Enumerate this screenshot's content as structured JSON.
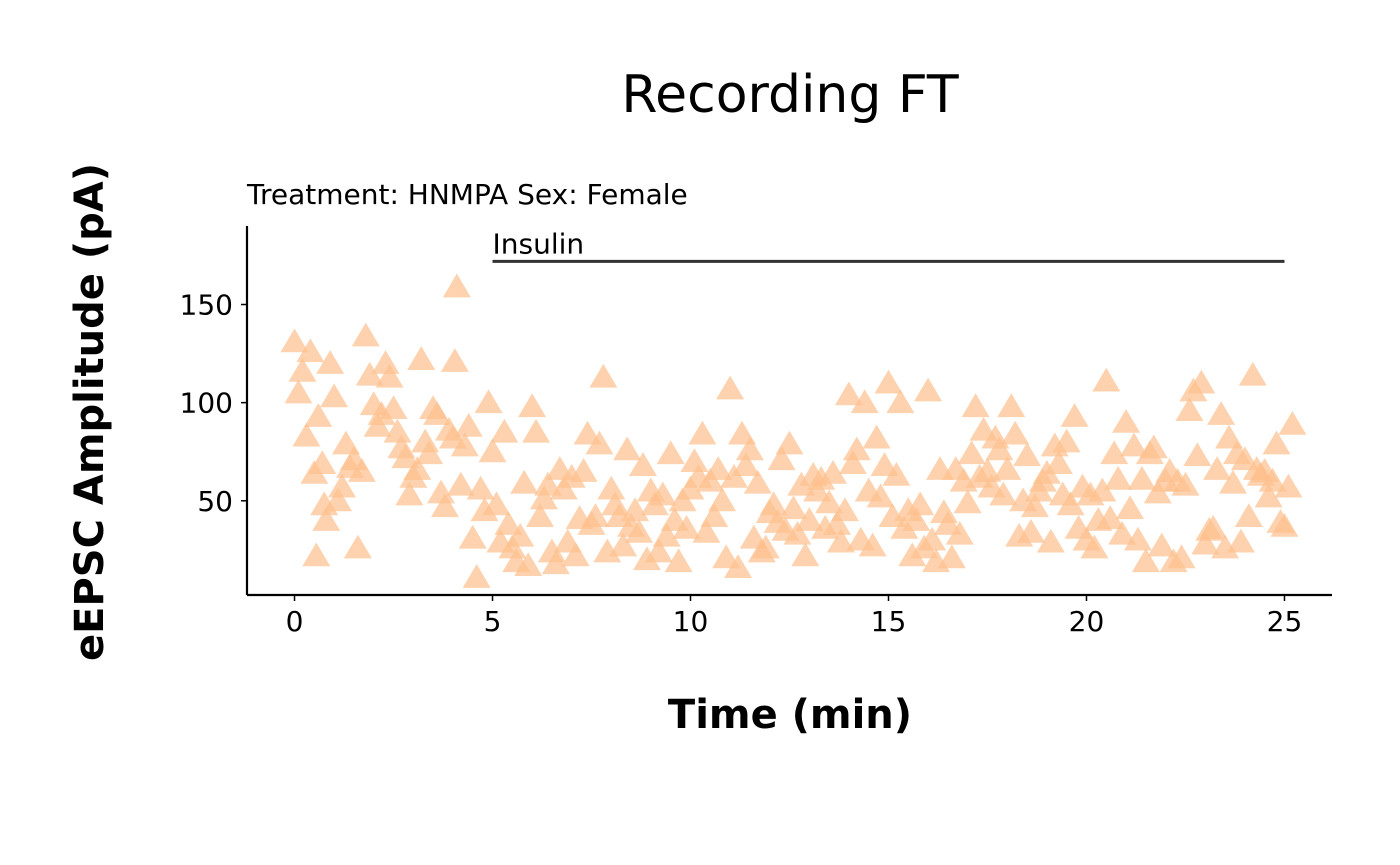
{
  "chart_data": {
    "type": "scatter",
    "title": "Recording FT",
    "subtitle": "Treatment: HNMPA  Sex: Female",
    "xlabel": "Time (min)",
    "ylabel": "eEPSC Amplitude (pA)",
    "xlim": [
      -1.2,
      26.2
    ],
    "ylim": [
      2,
      190
    ],
    "xticks": [
      0,
      5,
      10,
      15,
      20,
      25
    ],
    "yticks": [
      50,
      100,
      150
    ],
    "marker": "triangle",
    "marker_color": "#FDBF8C",
    "grid": false,
    "annotation": {
      "label": "Insulin",
      "x_start": 5,
      "x_end": 25,
      "y": 172
    },
    "points": [
      [
        0,
        131
      ],
      [
        0.1,
        105
      ],
      [
        0.2,
        116
      ],
      [
        0.3,
        83
      ],
      [
        0.4,
        126
      ],
      [
        0.5,
        64
      ],
      [
        0.55,
        22
      ],
      [
        0.6,
        93
      ],
      [
        0.7,
        69
      ],
      [
        0.75,
        48
      ],
      [
        0.8,
        40
      ],
      [
        0.9,
        120
      ],
      [
        1.0,
        103
      ],
      [
        1.1,
        50
      ],
      [
        1.2,
        57
      ],
      [
        1.3,
        79
      ],
      [
        1.4,
        67
      ],
      [
        1.5,
        71
      ],
      [
        1.6,
        26
      ],
      [
        1.7,
        65
      ],
      [
        1.8,
        134
      ],
      [
        1.9,
        114
      ],
      [
        2.0,
        99
      ],
      [
        2.1,
        88
      ],
      [
        2.2,
        94
      ],
      [
        2.3,
        120
      ],
      [
        2.4,
        113
      ],
      [
        2.5,
        97
      ],
      [
        2.6,
        85
      ],
      [
        2.7,
        77
      ],
      [
        2.8,
        72
      ],
      [
        2.9,
        53
      ],
      [
        3.0,
        62
      ],
      [
        3.1,
        66
      ],
      [
        3.2,
        122
      ],
      [
        3.3,
        80
      ],
      [
        3.4,
        74
      ],
      [
        3.5,
        97
      ],
      [
        3.6,
        94
      ],
      [
        3.7,
        54
      ],
      [
        3.8,
        47
      ],
      [
        3.9,
        86
      ],
      [
        4.0,
        82
      ],
      [
        4.05,
        121
      ],
      [
        4.1,
        159
      ],
      [
        4.2,
        58
      ],
      [
        4.3,
        78
      ],
      [
        4.4,
        88
      ],
      [
        4.5,
        31
      ],
      [
        4.6,
        11
      ],
      [
        4.7,
        56
      ],
      [
        4.8,
        45
      ],
      [
        4.9,
        100
      ],
      [
        5.0,
        75
      ],
      [
        5.1,
        48
      ],
      [
        5.2,
        29
      ],
      [
        5.3,
        85
      ],
      [
        5.4,
        38
      ],
      [
        5.5,
        26
      ],
      [
        5.6,
        19
      ],
      [
        5.7,
        32
      ],
      [
        5.8,
        59
      ],
      [
        5.9,
        17
      ],
      [
        6.0,
        98
      ],
      [
        6.1,
        85
      ],
      [
        6.2,
        42
      ],
      [
        6.3,
        51
      ],
      [
        6.4,
        58
      ],
      [
        6.5,
        24
      ],
      [
        6.6,
        18
      ],
      [
        6.7,
        66
      ],
      [
        6.8,
        56
      ],
      [
        6.9,
        29
      ],
      [
        7.0,
        62
      ],
      [
        7.1,
        22
      ],
      [
        7.2,
        41
      ],
      [
        7.3,
        65
      ],
      [
        7.4,
        84
      ],
      [
        7.5,
        38
      ],
      [
        7.6,
        42
      ],
      [
        7.7,
        79
      ],
      [
        7.8,
        113
      ],
      [
        7.9,
        24
      ],
      [
        8.0,
        56
      ],
      [
        8.1,
        48
      ],
      [
        8.2,
        42
      ],
      [
        8.3,
        27
      ],
      [
        8.4,
        76
      ],
      [
        8.5,
        37
      ],
      [
        8.6,
        45
      ],
      [
        8.7,
        34
      ],
      [
        8.8,
        68
      ],
      [
        8.9,
        20
      ],
      [
        9.0,
        55
      ],
      [
        9.1,
        48
      ],
      [
        9.2,
        24
      ],
      [
        9.3,
        53
      ],
      [
        9.4,
        32
      ],
      [
        9.5,
        74
      ],
      [
        9.6,
        40
      ],
      [
        9.7,
        19
      ],
      [
        9.8,
        50
      ],
      [
        9.9,
        36
      ],
      [
        10.0,
        56
      ],
      [
        10.1,
        70
      ],
      [
        10.2,
        62
      ],
      [
        10.3,
        84
      ],
      [
        10.4,
        34
      ],
      [
        10.5,
        60
      ],
      [
        10.6,
        42
      ],
      [
        10.7,
        66
      ],
      [
        10.8,
        50
      ],
      [
        10.9,
        21
      ],
      [
        11.0,
        107
      ],
      [
        11.1,
        62
      ],
      [
        11.2,
        16
      ],
      [
        11.3,
        84
      ],
      [
        11.4,
        68
      ],
      [
        11.5,
        76
      ],
      [
        11.6,
        31
      ],
      [
        11.7,
        59
      ],
      [
        11.8,
        24
      ],
      [
        11.9,
        26
      ],
      [
        12.0,
        44
      ],
      [
        12.1,
        48
      ],
      [
        12.2,
        39
      ],
      [
        12.3,
        71
      ],
      [
        12.4,
        35
      ],
      [
        12.5,
        79
      ],
      [
        12.6,
        46
      ],
      [
        12.7,
        33
      ],
      [
        12.8,
        58
      ],
      [
        12.9,
        22
      ],
      [
        13.0,
        40
      ],
      [
        13.1,
        63
      ],
      [
        13.2,
        55
      ],
      [
        13.3,
        61
      ],
      [
        13.4,
        36
      ],
      [
        13.5,
        49
      ],
      [
        13.6,
        64
      ],
      [
        13.7,
        38
      ],
      [
        13.8,
        29
      ],
      [
        13.9,
        45
      ],
      [
        14.0,
        104
      ],
      [
        14.1,
        69
      ],
      [
        14.2,
        76
      ],
      [
        14.3,
        30
      ],
      [
        14.4,
        100
      ],
      [
        14.5,
        55
      ],
      [
        14.6,
        27
      ],
      [
        14.7,
        82
      ],
      [
        14.8,
        52
      ],
      [
        14.9,
        68
      ],
      [
        15.0,
        110
      ],
      [
        15.1,
        42
      ],
      [
        15.2,
        63
      ],
      [
        15.3,
        100
      ],
      [
        15.4,
        36
      ],
      [
        15.5,
        45
      ],
      [
        15.6,
        22
      ],
      [
        15.7,
        40
      ],
      [
        15.8,
        48
      ],
      [
        15.9,
        26
      ],
      [
        16.0,
        106
      ],
      [
        16.1,
        30
      ],
      [
        16.2,
        19
      ],
      [
        16.3,
        66
      ],
      [
        16.4,
        44
      ],
      [
        16.5,
        38
      ],
      [
        16.6,
        21
      ],
      [
        16.7,
        66
      ],
      [
        16.8,
        33
      ],
      [
        16.9,
        60
      ],
      [
        17.0,
        49
      ],
      [
        17.1,
        74
      ],
      [
        17.2,
        98
      ],
      [
        17.3,
        62
      ],
      [
        17.4,
        86
      ],
      [
        17.5,
        65
      ],
      [
        17.6,
        57
      ],
      [
        17.7,
        82
      ],
      [
        17.8,
        76
      ],
      [
        17.9,
        53
      ],
      [
        18.0,
        66
      ],
      [
        18.1,
        98
      ],
      [
        18.2,
        84
      ],
      [
        18.3,
        32
      ],
      [
        18.4,
        50
      ],
      [
        18.5,
        73
      ],
      [
        18.6,
        34
      ],
      [
        18.7,
        47
      ],
      [
        18.8,
        55
      ],
      [
        18.9,
        60
      ],
      [
        19.0,
        64
      ],
      [
        19.1,
        29
      ],
      [
        19.2,
        78
      ],
      [
        19.3,
        69
      ],
      [
        19.4,
        53
      ],
      [
        19.5,
        80
      ],
      [
        19.6,
        48
      ],
      [
        19.7,
        93
      ],
      [
        19.8,
        36
      ],
      [
        19.9,
        57
      ],
      [
        20.0,
        30
      ],
      [
        20.1,
        53
      ],
      [
        20.2,
        26
      ],
      [
        20.3,
        40
      ],
      [
        20.4,
        55
      ],
      [
        20.5,
        111
      ],
      [
        20.6,
        41
      ],
      [
        20.7,
        74
      ],
      [
        20.8,
        61
      ],
      [
        20.9,
        33
      ],
      [
        21.0,
        90
      ],
      [
        21.1,
        46
      ],
      [
        21.2,
        78
      ],
      [
        21.3,
        30
      ],
      [
        21.4,
        61
      ],
      [
        21.5,
        19
      ],
      [
        21.6,
        74
      ],
      [
        21.7,
        77
      ],
      [
        21.8,
        54
      ],
      [
        21.9,
        27
      ],
      [
        22.0,
        60
      ],
      [
        22.1,
        65
      ],
      [
        22.2,
        19
      ],
      [
        22.3,
        60
      ],
      [
        22.4,
        21
      ],
      [
        22.5,
        58
      ],
      [
        22.6,
        96
      ],
      [
        22.7,
        106
      ],
      [
        22.8,
        73
      ],
      [
        22.9,
        110
      ],
      [
        23.0,
        28
      ],
      [
        23.1,
        35
      ],
      [
        23.2,
        36
      ],
      [
        23.3,
        66
      ],
      [
        23.4,
        94
      ],
      [
        23.5,
        26
      ],
      [
        23.6,
        82
      ],
      [
        23.7,
        59
      ],
      [
        23.8,
        74
      ],
      [
        23.9,
        29
      ],
      [
        24.0,
        71
      ],
      [
        24.1,
        42
      ],
      [
        24.2,
        114
      ],
      [
        24.3,
        66
      ],
      [
        24.4,
        63
      ],
      [
        24.5,
        65
      ],
      [
        24.6,
        52
      ],
      [
        24.7,
        60
      ],
      [
        24.8,
        79
      ],
      [
        24.9,
        39
      ],
      [
        25.0,
        37
      ],
      [
        25.1,
        57
      ],
      [
        25.2,
        89
      ]
    ]
  }
}
